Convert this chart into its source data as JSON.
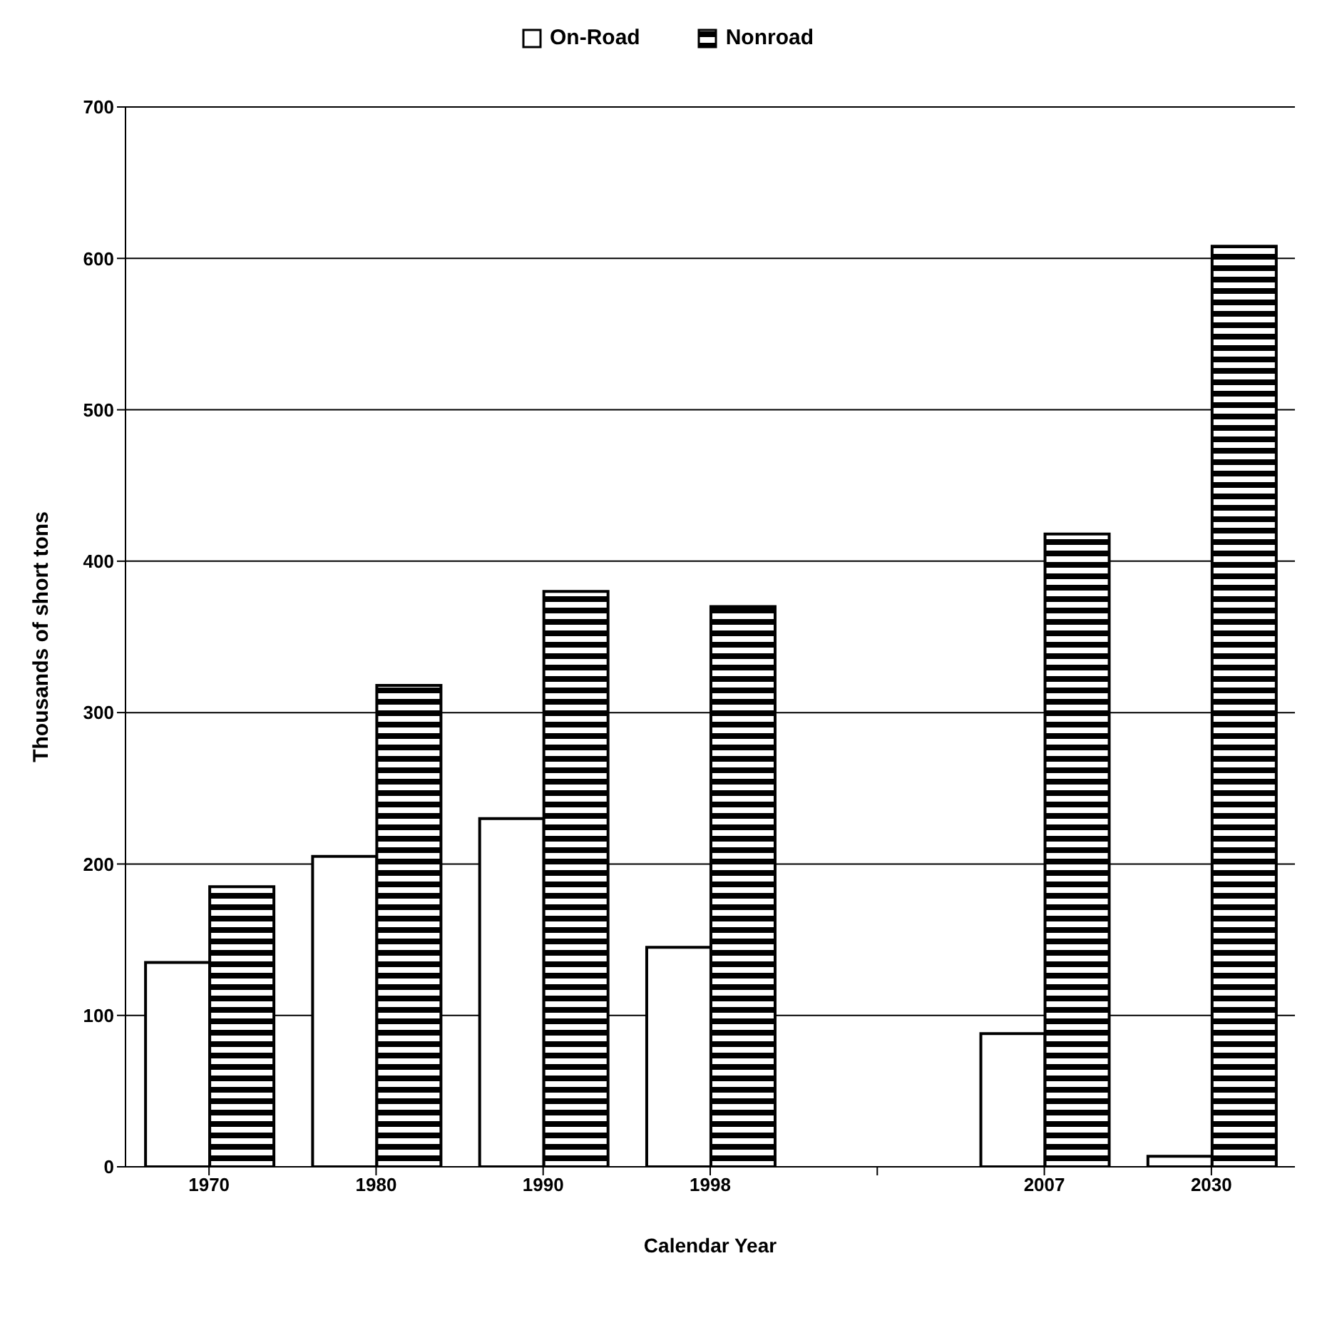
{
  "chart_data": {
    "type": "bar",
    "xlabel": "Calendar Year",
    "ylabel": "Thousands of short tons",
    "categories": [
      "1970",
      "1980",
      "1990",
      "1998",
      null,
      "2007",
      "2030"
    ],
    "series": [
      {
        "name": "On-Road",
        "color": "#ffffff",
        "values": [
          135,
          205,
          230,
          145,
          null,
          88,
          7
        ]
      },
      {
        "name": "Nonroad",
        "color": "#000000",
        "values": [
          185,
          318,
          380,
          370,
          null,
          418,
          608
        ]
      }
    ],
    "ylim": [
      0,
      700
    ],
    "yticks": [
      0,
      100,
      200,
      300,
      400,
      500,
      600,
      700
    ],
    "grid": "y",
    "legend": "top"
  }
}
